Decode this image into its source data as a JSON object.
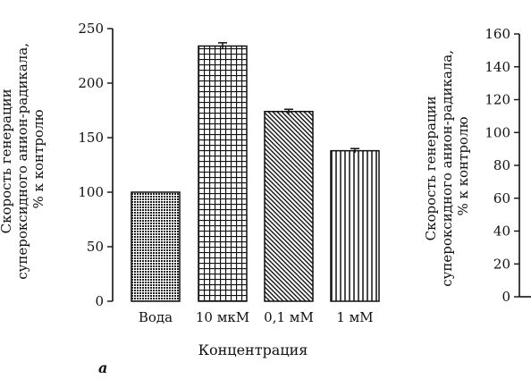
{
  "panel_label": "а",
  "chart_data": [
    {
      "type": "bar",
      "title": "",
      "ylabel_lines": [
        "Скорость генерации",
        "супероксидного анион-радикала,",
        "% к контролю"
      ],
      "xlabel": "Концентрация",
      "categories": [
        "Вода",
        "10 мкМ",
        "0,1 мМ",
        "1 мМ"
      ],
      "values": [
        100,
        234,
        174,
        138
      ],
      "errors": [
        0,
        3,
        2,
        2
      ],
      "patterns": [
        "dots",
        "grid",
        "diagonal",
        "vertical"
      ],
      "ylim": [
        0,
        250
      ],
      "yticks": [
        0,
        50,
        100,
        150,
        200,
        250
      ],
      "grid": false
    },
    {
      "type": "bar",
      "title": "",
      "ylabel_lines": [
        "Скорость генерации",
        "супероксидного анион-радикала,",
        "% к контролю"
      ],
      "xlabel": "",
      "categories": [],
      "values": [],
      "ylim": [
        0,
        160
      ],
      "yticks": [
        0,
        20,
        40,
        60,
        80,
        100,
        120,
        140,
        160
      ],
      "grid": false
    }
  ]
}
